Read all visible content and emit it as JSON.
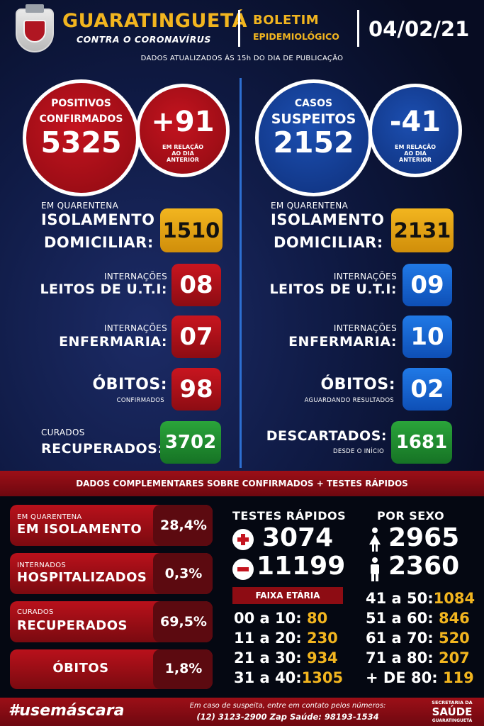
{
  "header": {
    "city": "GUARATINGUETÁ",
    "subtitle": "CONTRA O CORONAVÍRUS",
    "boletim": "BOLETIM",
    "epidemiologico": "EPIDEMIOLÓGICO",
    "date": "04/02/21",
    "updated": "DADOS ATUALIZADOS ÀS 15h DO DIA DE PUBLICAÇÃO"
  },
  "confirmed": {
    "label1": "POSITIVOS",
    "label2": "CONFIRMADOS",
    "value": "5325",
    "delta": "+91",
    "delta_note1": "EM RELAÇÃO",
    "delta_note2": "AO DIA",
    "delta_note3": "ANTERIOR",
    "quarantine_small": "EM QUARENTENA",
    "isolation_line1": "ISOLAMENTO",
    "isolation_line2": "DOMICILIAR:",
    "isolation_value": "1510",
    "icu_small": "INTERNAÇÕES",
    "icu_big": "LEITOS DE U.T.I:",
    "icu_value": "08",
    "ward_small": "INTERNAÇÕES",
    "ward_big": "ENFERMARIA:",
    "ward_value": "07",
    "deaths_big": "ÓBITOS:",
    "deaths_small": "CONFIRMADOS",
    "deaths_value": "98",
    "cured_small": "CURADOS",
    "cured_big": "RECUPERADOS:",
    "cured_value": "3702"
  },
  "suspected": {
    "label1": "CASOS",
    "label2": "SUSPEITOS",
    "value": "2152",
    "delta": "-41",
    "delta_note1": "EM RELAÇÃO",
    "delta_note2": "AO DIA",
    "delta_note3": "ANTERIOR",
    "quarantine_small": "EM QUARENTENA",
    "isolation_line1": "ISOLAMENTO",
    "isolation_line2": "DOMICILIAR:",
    "isolation_value": "2131",
    "icu_small": "INTERNAÇÕES",
    "icu_big": "LEITOS DE U.T.I:",
    "icu_value": "09",
    "ward_small": "INTERNAÇÕES",
    "ward_big": "ENFERMARIA:",
    "ward_value": "10",
    "deaths_big": "ÓBITOS:",
    "deaths_small": "AGUARDANDO RESULTADOS",
    "deaths_value": "02",
    "discarded_big": "DESCARTADOS:",
    "discarded_small": "DESDE O INÍCIO",
    "discarded_value": "1681"
  },
  "band": "DADOS COMPLEMENTARES SOBRE CONFIRMADOS + TESTES RÁPIDOS",
  "percentages": [
    {
      "small": "EM QUARENTENA",
      "big": "EM ISOLAMENTO",
      "value": "28,4%"
    },
    {
      "small": "INTERNADOS",
      "big": "HOSPITALIZADOS",
      "value": "0,3%"
    },
    {
      "small": "CURADOS",
      "big": "RECUPERADOS",
      "value": "69,5%"
    },
    {
      "small": "",
      "big": "ÓBITOS",
      "value": "1,8%"
    }
  ],
  "rapid_tests": {
    "title": "TESTES RÁPIDOS",
    "positive": "3074",
    "negative": "11199"
  },
  "by_sex": {
    "title": "POR SEXO",
    "female": "2965",
    "male": "2360"
  },
  "age": {
    "title": "FAIXA ETÁRIA",
    "left": [
      {
        "range": "00 a 10:",
        "value": "80"
      },
      {
        "range": "11 a 20:",
        "value": "230"
      },
      {
        "range": "21 a 30:",
        "value": "934"
      },
      {
        "range": "31 a 40:",
        "value": "1305"
      }
    ],
    "right": [
      {
        "range": "41 a 50:",
        "value": "1084"
      },
      {
        "range": "51 a 60:",
        "value": "846"
      },
      {
        "range": "61 a 70:",
        "value": "520"
      },
      {
        "range": "71 a 80:",
        "value": "207"
      },
      {
        "range": "+ DE 80:",
        "value": "119"
      }
    ]
  },
  "footer": {
    "hashtag": "#usemáscara",
    "line1": "Em caso de suspeita, entre em contato pelos números:",
    "line2": "(12) 3123-2900 Zap Saúde: 98193-1534",
    "sec1": "SECRETARIA DA",
    "sec2": "SAÚDE",
    "sec3": "GUARATINGUETÁ"
  }
}
